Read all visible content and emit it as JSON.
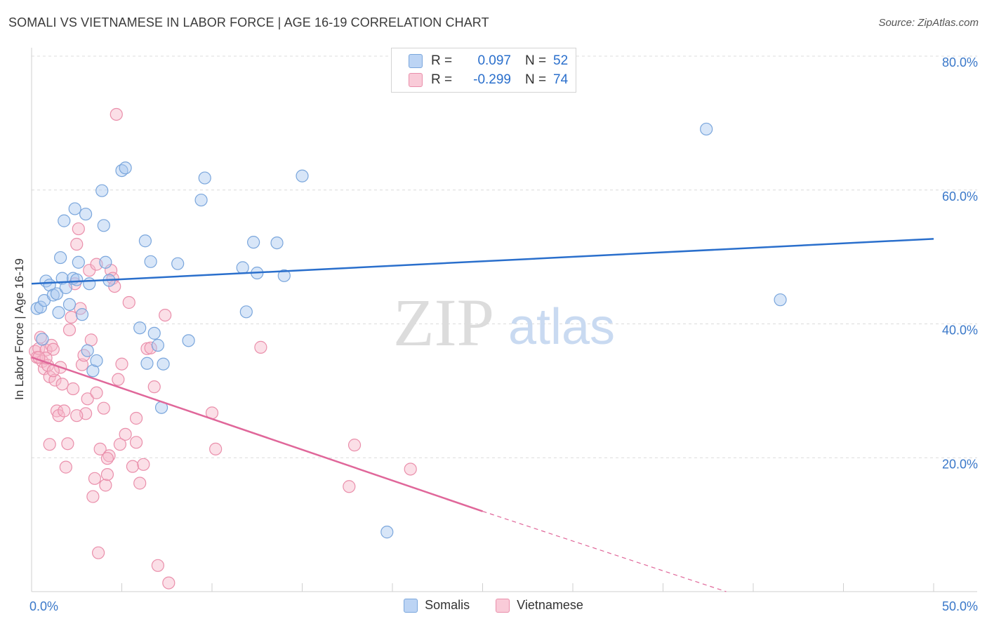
{
  "title": "SOMALI VS VIETNAMESE IN LABOR FORCE | AGE 16-19 CORRELATION CHART",
  "source": "Source: ZipAtlas.com",
  "watermark": {
    "zip": "ZIP",
    "atlas": "atlas"
  },
  "colors": {
    "somali_fill": "#a9c8f0",
    "somali_stroke": "#7aa6dc",
    "somali_line": "#2a6fcc",
    "viet_fill": "#f7b8ca",
    "viet_stroke": "#ea8fab",
    "viet_line": "#e0679a",
    "axis_text": "#3a78c9",
    "grid": "#dcdcdc"
  },
  "legend_top": {
    "rows": [
      {
        "r_label": "R =",
        "r_value": "0.097",
        "n_label": "N =",
        "n_value": "52"
      },
      {
        "r_label": "R =",
        "r_value": "-0.299",
        "n_label": "N =",
        "n_value": "74"
      }
    ]
  },
  "legend_bottom": [
    "Somalis",
    "Vietnamese"
  ],
  "chart_data": {
    "type": "scatter",
    "title": "SOMALI VS VIETNAMESE IN LABOR FORCE | AGE 16-19 CORRELATION CHART",
    "xlabel": "",
    "ylabel": "In Labor Force | Age 16-19",
    "xlim": [
      0,
      50
    ],
    "ylim": [
      0,
      80
    ],
    "x_tick_labels": [
      "0.0%",
      "50.0%"
    ],
    "y_ticks": [
      20,
      40,
      60,
      80
    ],
    "y_tick_labels": [
      "20.0%",
      "40.0%",
      "60.0%",
      "80.0%"
    ],
    "grid": true,
    "series": [
      {
        "name": "Somalis",
        "r": 0.097,
        "n": 52,
        "trend": {
          "x": [
            0,
            50
          ],
          "y": [
            46.0,
            52.7
          ],
          "style": "solid"
        },
        "points": [
          [
            0.3,
            42.3
          ],
          [
            0.5,
            42.5
          ],
          [
            0.6,
            37.7
          ],
          [
            0.7,
            43.5
          ],
          [
            0.8,
            46.4
          ],
          [
            1.0,
            45.8
          ],
          [
            1.2,
            44.3
          ],
          [
            1.4,
            44.5
          ],
          [
            1.5,
            41.7
          ],
          [
            1.6,
            49.9
          ],
          [
            1.7,
            46.8
          ],
          [
            1.8,
            55.4
          ],
          [
            1.9,
            45.4
          ],
          [
            2.1,
            42.9
          ],
          [
            2.3,
            46.8
          ],
          [
            2.4,
            57.2
          ],
          [
            2.5,
            46.6
          ],
          [
            2.6,
            49.2
          ],
          [
            2.8,
            41.4
          ],
          [
            3.0,
            56.4
          ],
          [
            3.1,
            36.0
          ],
          [
            3.2,
            46.0
          ],
          [
            3.4,
            33.0
          ],
          [
            3.6,
            34.5
          ],
          [
            3.9,
            59.9
          ],
          [
            4.0,
            54.7
          ],
          [
            4.1,
            49.2
          ],
          [
            4.3,
            46.5
          ],
          [
            5.0,
            62.9
          ],
          [
            5.2,
            63.3
          ],
          [
            6.0,
            39.4
          ],
          [
            6.3,
            52.4
          ],
          [
            6.4,
            34.1
          ],
          [
            6.6,
            49.3
          ],
          [
            6.8,
            38.6
          ],
          [
            7.0,
            36.8
          ],
          [
            7.3,
            34.0
          ],
          [
            8.1,
            49.0
          ],
          [
            8.7,
            37.5
          ],
          [
            9.4,
            58.5
          ],
          [
            9.6,
            61.8
          ],
          [
            11.7,
            48.4
          ],
          [
            11.9,
            41.8
          ],
          [
            12.3,
            52.2
          ],
          [
            12.5,
            47.6
          ],
          [
            13.6,
            52.1
          ],
          [
            14.0,
            47.2
          ],
          [
            15.0,
            62.1
          ],
          [
            19.7,
            8.9
          ],
          [
            37.4,
            69.1
          ],
          [
            41.5,
            43.6
          ],
          [
            7.2,
            27.5
          ]
        ]
      },
      {
        "name": "Vietnamese",
        "r": -0.299,
        "n": 74,
        "trend": {
          "x": [
            0,
            25
          ],
          "y": [
            35.0,
            12.0
          ],
          "style": "solid",
          "dashed_extension": {
            "x": [
              25,
              38.5
            ],
            "y": [
              12.0,
              0
            ]
          }
        },
        "points": [
          [
            0.2,
            35.9
          ],
          [
            0.3,
            35.0
          ],
          [
            0.4,
            36.3
          ],
          [
            0.5,
            38.0
          ],
          [
            0.6,
            34.4
          ],
          [
            0.7,
            33.3
          ],
          [
            0.8,
            36.1
          ],
          [
            0.9,
            33.8
          ],
          [
            1.0,
            32.1
          ],
          [
            1.1,
            36.8
          ],
          [
            1.2,
            36.2
          ],
          [
            1.3,
            31.6
          ],
          [
            1.4,
            27.0
          ],
          [
            1.5,
            26.3
          ],
          [
            1.6,
            33.5
          ],
          [
            1.7,
            31.0
          ],
          [
            1.8,
            27.0
          ],
          [
            1.9,
            18.6
          ],
          [
            2.0,
            22.1
          ],
          [
            2.1,
            39.1
          ],
          [
            2.2,
            41.0
          ],
          [
            2.3,
            30.3
          ],
          [
            2.4,
            46.0
          ],
          [
            2.5,
            51.9
          ],
          [
            2.6,
            54.2
          ],
          [
            2.7,
            42.3
          ],
          [
            2.8,
            33.9
          ],
          [
            2.9,
            35.3
          ],
          [
            3.0,
            26.6
          ],
          [
            3.1,
            28.8
          ],
          [
            3.2,
            48.0
          ],
          [
            3.3,
            37.6
          ],
          [
            3.4,
            14.2
          ],
          [
            3.5,
            16.9
          ],
          [
            3.6,
            29.7
          ],
          [
            3.7,
            5.8
          ],
          [
            3.8,
            21.3
          ],
          [
            4.0,
            27.4
          ],
          [
            4.1,
            15.9
          ],
          [
            4.2,
            17.5
          ],
          [
            4.3,
            20.3
          ],
          [
            4.4,
            48.0
          ],
          [
            4.5,
            46.8
          ],
          [
            4.6,
            45.6
          ],
          [
            4.7,
            71.3
          ],
          [
            4.8,
            31.7
          ],
          [
            4.9,
            22.0
          ],
          [
            5.0,
            34.0
          ],
          [
            5.2,
            23.5
          ],
          [
            5.4,
            43.2
          ],
          [
            5.6,
            18.7
          ],
          [
            5.8,
            25.9
          ],
          [
            6.0,
            16.2
          ],
          [
            6.2,
            19.0
          ],
          [
            6.4,
            36.3
          ],
          [
            6.6,
            36.4
          ],
          [
            6.8,
            30.6
          ],
          [
            7.0,
            3.9
          ],
          [
            7.4,
            41.3
          ],
          [
            7.6,
            1.3
          ],
          [
            10.0,
            26.7
          ],
          [
            10.2,
            21.3
          ],
          [
            12.7,
            36.5
          ],
          [
            17.6,
            15.7
          ],
          [
            17.9,
            21.9
          ],
          [
            21.0,
            18.3
          ],
          [
            1.0,
            22.0
          ],
          [
            2.5,
            26.3
          ],
          [
            1.2,
            33.0
          ],
          [
            0.8,
            34.9
          ],
          [
            4.2,
            19.9
          ],
          [
            3.6,
            48.9
          ],
          [
            5.8,
            22.3
          ],
          [
            0.4,
            35.0
          ]
        ]
      }
    ]
  }
}
